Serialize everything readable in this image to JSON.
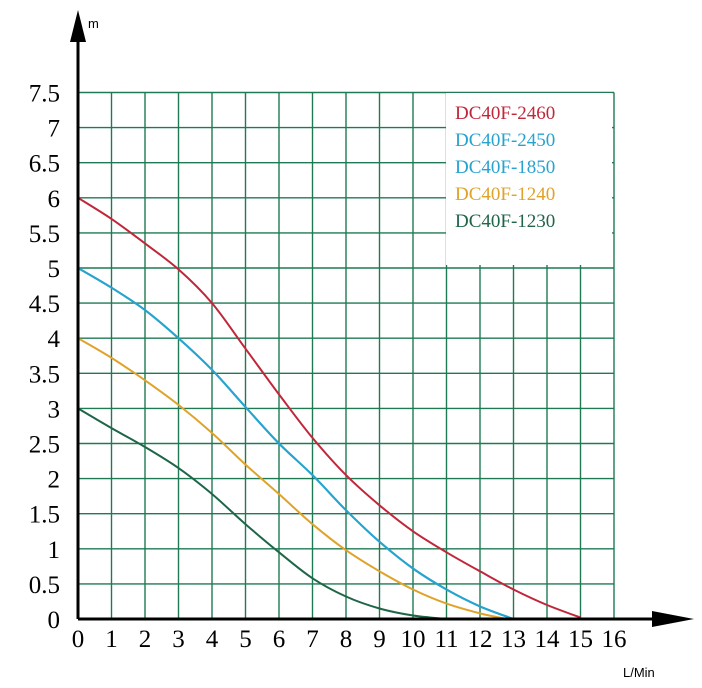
{
  "chart_data": {
    "type": "line",
    "title": "",
    "xlabel": "L/Min",
    "ylabel": "m",
    "xlim": [
      0,
      16
    ],
    "ylim": [
      0,
      7.5
    ],
    "x_ticks": [
      "0",
      "1",
      "2",
      "3",
      "4",
      "5",
      "6",
      "7",
      "8",
      "9",
      "10",
      "11",
      "12",
      "13",
      "14",
      "15",
      "16"
    ],
    "y_ticks": [
      "0",
      "0.5",
      "1",
      "1.5",
      "2",
      "2.5",
      "3",
      "3.5",
      "4",
      "4.5",
      "5",
      "5.5",
      "6",
      "6.5",
      "7",
      "7.5"
    ],
    "grid": true,
    "grid_color": "#1f7a54",
    "legend_position": "top-right",
    "series": [
      {
        "name": "DC40F-2460",
        "color": "#c0273a",
        "points": [
          [
            0,
            6
          ],
          [
            1,
            5.7
          ],
          [
            2,
            5.35
          ],
          [
            3,
            4.98
          ],
          [
            4,
            4.5
          ],
          [
            5,
            3.85
          ],
          [
            6,
            3.2
          ],
          [
            7,
            2.58
          ],
          [
            8,
            2.05
          ],
          [
            9,
            1.62
          ],
          [
            10,
            1.25
          ],
          [
            11,
            0.95
          ],
          [
            12,
            0.68
          ],
          [
            13,
            0.42
          ],
          [
            14,
            0.2
          ],
          [
            15,
            0.02
          ]
        ]
      },
      {
        "name": "DC40F-2450",
        "color": "#27a3cf",
        "points": [
          [
            0,
            5
          ],
          [
            1,
            4.72
          ],
          [
            2,
            4.4
          ],
          [
            3,
            4.0
          ],
          [
            4,
            3.55
          ],
          [
            5,
            3.02
          ],
          [
            6,
            2.5
          ],
          [
            7,
            2.05
          ],
          [
            8,
            1.55
          ],
          [
            9,
            1.1
          ],
          [
            10,
            0.72
          ],
          [
            11,
            0.42
          ],
          [
            12,
            0.18
          ],
          [
            13,
            0
          ]
        ]
      },
      {
        "name": "DC40F-1850",
        "color": "#27a3cf",
        "points": [
          [
            0,
            5
          ],
          [
            1,
            4.72
          ],
          [
            2,
            4.4
          ],
          [
            3,
            4.0
          ],
          [
            4,
            3.55
          ],
          [
            5,
            3.02
          ],
          [
            6,
            2.5
          ],
          [
            7,
            2.05
          ],
          [
            8,
            1.55
          ],
          [
            9,
            1.1
          ],
          [
            10,
            0.72
          ],
          [
            11,
            0.42
          ],
          [
            12,
            0.18
          ],
          [
            13,
            0
          ]
        ]
      },
      {
        "name": "DC40F-1240",
        "color": "#e0a32a",
        "points": [
          [
            0,
            4
          ],
          [
            1,
            3.72
          ],
          [
            2,
            3.4
          ],
          [
            3,
            3.05
          ],
          [
            4,
            2.65
          ],
          [
            5,
            2.2
          ],
          [
            6,
            1.78
          ],
          [
            7,
            1.35
          ],
          [
            8,
            0.98
          ],
          [
            9,
            0.68
          ],
          [
            10,
            0.42
          ],
          [
            11,
            0.22
          ],
          [
            12,
            0.08
          ],
          [
            12.8,
            0
          ]
        ]
      },
      {
        "name": "DC40F-1230",
        "color": "#1f6648",
        "points": [
          [
            0,
            3
          ],
          [
            1,
            2.72
          ],
          [
            2,
            2.45
          ],
          [
            3,
            2.15
          ],
          [
            4,
            1.78
          ],
          [
            5,
            1.35
          ],
          [
            6,
            0.95
          ],
          [
            7,
            0.58
          ],
          [
            8,
            0.32
          ],
          [
            9,
            0.15
          ],
          [
            10,
            0.05
          ],
          [
            11,
            0
          ]
        ]
      }
    ]
  }
}
